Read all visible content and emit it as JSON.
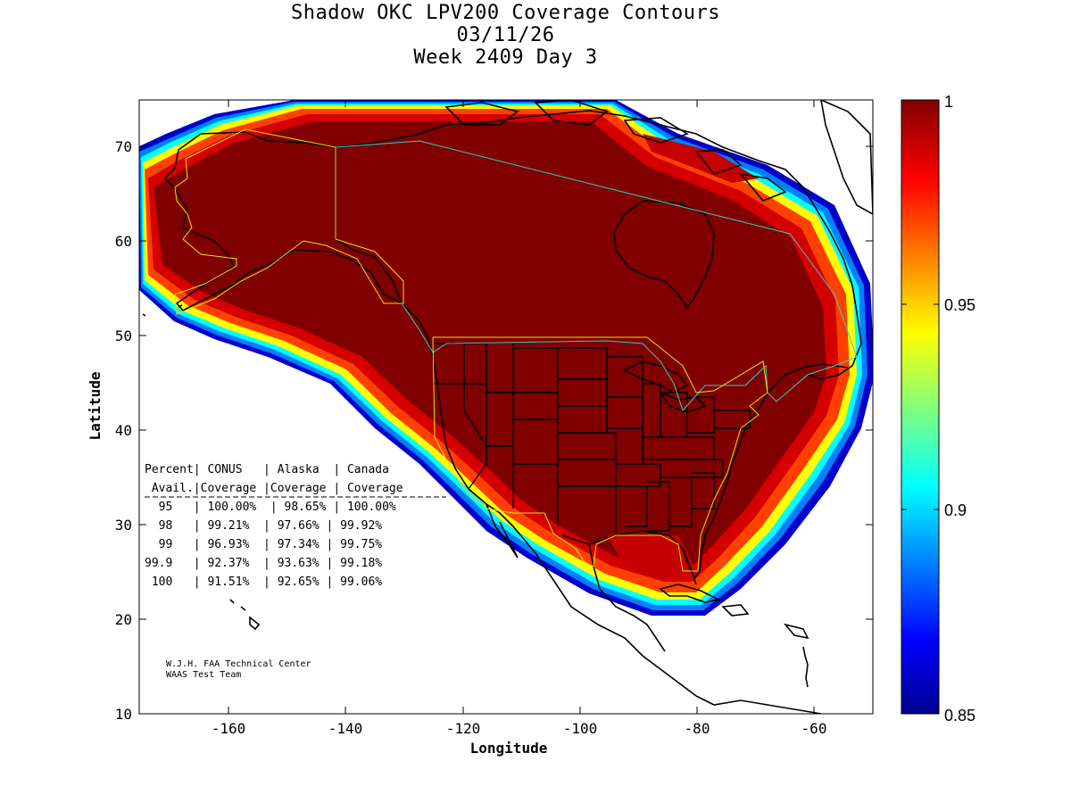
{
  "title": {
    "line1": "Shadow OKC LPV200 Coverage Contours",
    "line2": "03/11/26",
    "line3": "Week 2409 Day 3"
  },
  "axes": {
    "xlabel": "Longitude",
    "ylabel": "Latitude",
    "xticks": [
      -160,
      -140,
      -120,
      -100,
      -80,
      -60
    ],
    "yticks": [
      10,
      20,
      30,
      40,
      50,
      60,
      70
    ],
    "xlim": [
      -175,
      -50
    ],
    "ylim": [
      10,
      75
    ]
  },
  "colorbar": {
    "min": 0.85,
    "max": 1,
    "ticks": [
      "1",
      "0.95",
      "0.9",
      "0.85"
    ],
    "tick_values": [
      1,
      0.95,
      0.9,
      0.85
    ]
  },
  "table": {
    "header1": "Percent| CONUS   | Alaska  | Canada",
    "header2": " Avail.|Coverage |Coverage | Coverage",
    "rows": [
      "  95   | 100.00%  | 98.65% | 100.00%",
      "  98   | 99.21%  | 97.66% | 99.92%",
      "  99   | 96.93%  | 97.34% | 99.75%",
      "99.9   | 92.37%  | 93.63% | 99.18%",
      " 100   | 91.51%  | 92.65% | 99.06%"
    ]
  },
  "credit": {
    "line1": "W.J.H. FAA Technical Center",
    "line2": "WAAS Test Team"
  },
  "chart_data": {
    "type": "heatmap",
    "title": "Shadow OKC LPV200 Coverage Contours",
    "xlabel": "Longitude",
    "ylabel": "Latitude",
    "xlim": [
      -175,
      -50
    ],
    "ylim": [
      10,
      75
    ],
    "colorscale": "jet",
    "value_range": [
      0.85,
      1
    ],
    "coverage_table": {
      "columns": [
        "Percent Avail.",
        "CONUS Coverage",
        "Alaska Coverage",
        "Canada Coverage"
      ],
      "rows": [
        [
          "95",
          "100.00%",
          "98.65%",
          "100.00%"
        ],
        [
          "98",
          "99.21%",
          "97.66%",
          "99.92%"
        ],
        [
          "99",
          "96.93%",
          "97.34%",
          "99.75%"
        ],
        [
          "99.9",
          "92.37%",
          "93.63%",
          "99.18%"
        ],
        [
          "100",
          "91.51%",
          "92.65%",
          "99.06%"
        ]
      ]
    }
  }
}
